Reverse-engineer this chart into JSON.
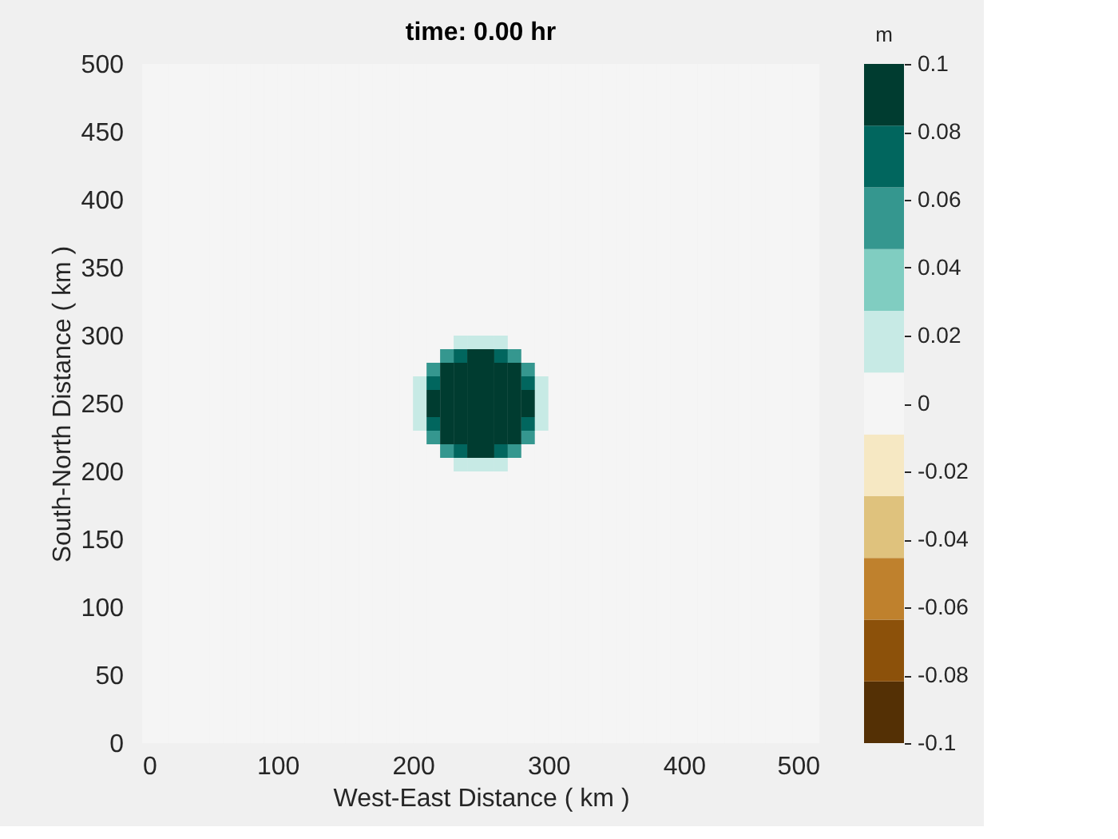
{
  "chart_data": {
    "type": "heatmap",
    "title": "time: 0.00 hr",
    "xlabel": "West-East Distance ( km )",
    "ylabel": "South-North Distance ( km )",
    "clabel": "m",
    "xlim": [
      0,
      500
    ],
    "ylim": [
      0,
      500
    ],
    "xticks": [
      0,
      100,
      200,
      300,
      400,
      500
    ],
    "yticks": [
      0,
      50,
      100,
      150,
      200,
      250,
      300,
      350,
      400,
      450,
      500
    ],
    "clim": [
      -0.1,
      0.1
    ],
    "cticks": [
      -0.1,
      -0.08,
      -0.06,
      -0.04,
      -0.02,
      0,
      0.02,
      0.04,
      0.06,
      0.08,
      0.1
    ],
    "colors": [
      "#543005",
      "#8c510a",
      "#bf812d",
      "#dfc27d",
      "#f6e8c3",
      "#f5f5f5",
      "#c7eae5",
      "#80cdc1",
      "#35978f",
      "#01665e",
      "#003c30"
    ],
    "grid": false,
    "cells": [
      [
        0,
        0,
        0,
        0,
        0,
        0,
        0,
        0,
        0,
        0,
        0,
        0,
        0,
        0,
        0,
        0,
        0,
        0,
        0,
        0,
        0,
        0,
        0,
        0,
        0,
        0,
        0,
        0,
        0,
        0,
        0,
        0,
        0,
        0,
        0,
        0,
        0,
        0,
        0,
        0,
        0,
        0,
        0,
        0,
        0,
        0,
        0,
        0,
        0,
        0
      ],
      [
        0,
        0,
        0,
        0,
        0,
        0,
        0,
        0,
        0,
        0,
        0,
        0,
        0,
        0,
        0,
        0,
        0,
        0,
        0,
        0,
        0,
        0,
        0,
        0,
        0,
        0,
        0,
        0,
        0,
        0,
        0,
        0,
        0,
        0,
        0,
        0,
        0,
        0,
        0,
        0,
        0,
        0,
        0,
        0,
        0,
        0,
        0,
        0,
        0,
        0
      ],
      [
        0,
        0,
        0,
        0,
        0,
        0,
        0,
        0,
        0,
        0,
        0,
        0,
        0,
        0,
        0,
        0,
        0,
        0,
        0,
        0,
        0,
        0,
        0,
        0,
        0,
        0,
        0,
        0,
        0,
        0,
        0,
        0,
        0,
        0,
        0,
        0,
        0,
        0,
        0,
        0,
        0,
        0,
        0,
        0,
        0,
        0,
        0,
        0,
        0,
        0
      ],
      [
        0,
        0,
        0,
        0,
        0,
        0,
        0,
        0,
        0,
        0,
        0,
        0,
        0,
        0,
        0,
        0,
        0,
        0,
        0,
        0,
        0,
        0,
        0,
        0,
        0,
        0,
        0,
        0,
        0,
        0,
        0,
        0,
        0,
        0,
        0,
        0,
        0,
        0,
        0,
        0,
        0,
        0,
        0,
        0,
        0,
        0,
        0,
        0,
        0,
        0
      ],
      [
        0,
        0,
        0,
        0,
        0,
        0,
        0,
        0,
        0,
        0,
        0,
        0,
        0,
        0,
        0,
        0,
        0,
        0,
        0,
        0,
        0,
        0,
        0,
        0,
        0,
        0,
        0,
        0,
        0,
        0,
        0,
        0,
        0,
        0,
        0,
        0,
        0,
        0,
        0,
        0,
        0,
        0,
        0,
        0,
        0,
        0,
        0,
        0,
        0,
        0
      ],
      [
        0,
        0,
        0,
        0,
        0,
        0,
        0,
        0,
        0,
        0,
        0,
        0,
        0,
        0,
        0,
        0,
        0,
        0,
        0,
        0,
        0,
        0,
        0,
        0,
        0,
        0,
        0,
        0,
        0,
        0,
        0,
        0,
        0,
        0,
        0,
        0,
        0,
        0,
        0,
        0,
        0,
        0,
        0,
        0,
        0,
        0,
        0,
        0,
        0,
        0
      ],
      [
        0,
        0,
        0,
        0,
        0,
        0,
        0,
        0,
        0,
        0,
        0,
        0,
        0,
        0,
        0,
        0,
        0,
        0,
        0,
        0,
        0,
        0,
        0,
        0,
        0,
        0,
        0,
        0,
        0,
        0,
        0,
        0,
        0,
        0,
        0,
        0,
        0,
        0,
        0,
        0,
        0,
        0,
        0,
        0,
        0,
        0,
        0,
        0,
        0,
        0
      ],
      [
        0,
        0,
        0,
        0,
        0,
        0,
        0,
        0,
        0,
        0,
        0,
        0,
        0,
        0,
        0,
        0,
        0,
        0,
        0,
        0,
        0,
        0,
        0,
        0,
        0,
        0,
        0,
        0,
        0,
        0,
        0,
        0,
        0,
        0,
        0,
        0,
        0,
        0,
        0,
        0,
        0,
        0,
        0,
        0,
        0,
        0,
        0,
        0,
        0,
        0
      ],
      [
        0,
        0,
        0,
        0,
        0,
        0,
        0,
        0,
        0,
        0,
        0,
        0,
        0,
        0,
        0,
        0,
        0,
        0,
        0,
        0,
        0,
        0,
        0,
        0,
        0,
        0,
        0,
        0,
        0,
        0,
        0,
        0,
        0,
        0,
        0,
        0,
        0,
        0,
        0,
        0,
        0,
        0,
        0,
        0,
        0,
        0,
        0,
        0,
        0,
        0
      ],
      [
        0,
        0,
        0,
        0,
        0,
        0,
        0,
        0,
        0,
        0,
        0,
        0,
        0,
        0,
        0,
        0,
        0,
        0,
        0,
        0,
        0,
        0,
        0,
        0,
        0,
        0,
        0,
        0,
        0,
        0,
        0,
        0,
        0,
        0,
        0,
        0,
        0,
        0,
        0,
        0,
        0,
        0,
        0,
        0,
        0,
        0,
        0,
        0,
        0,
        0
      ],
      [
        0,
        0,
        0,
        0,
        0,
        0,
        0,
        0,
        0,
        0,
        0,
        0,
        0,
        0,
        0,
        0,
        0,
        0,
        0,
        0,
        0,
        0,
        0,
        0,
        0,
        0,
        0,
        0,
        0,
        0,
        0,
        0,
        0,
        0,
        0,
        0,
        0,
        0,
        0,
        0,
        0,
        0,
        0,
        0,
        0,
        0,
        0,
        0,
        0,
        0
      ],
      [
        0,
        0,
        0,
        0,
        0,
        0,
        0,
        0,
        0,
        0,
        0,
        0,
        0,
        0,
        0,
        0,
        0,
        0,
        0,
        0,
        0,
        0,
        0,
        0,
        0,
        0,
        0,
        0,
        0,
        0,
        0,
        0,
        0,
        0,
        0,
        0,
        0,
        0,
        0,
        0,
        0,
        0,
        0,
        0,
        0,
        0,
        0,
        0,
        0,
        0
      ],
      [
        0,
        0,
        0,
        0,
        0,
        0,
        0,
        0,
        0,
        0,
        0,
        0,
        0,
        0,
        0,
        0,
        0,
        0,
        0,
        0,
        0,
        0,
        0,
        0,
        0,
        0,
        0,
        0,
        0,
        0,
        0,
        0,
        0,
        0,
        0,
        0,
        0,
        0,
        0,
        0,
        0,
        0,
        0,
        0,
        0,
        0,
        0,
        0,
        0,
        0
      ],
      [
        0,
        0,
        0,
        0,
        0,
        0,
        0,
        0,
        0,
        0,
        0,
        0,
        0,
        0,
        0,
        0,
        0,
        0,
        0,
        0,
        0,
        0,
        0,
        0,
        0,
        0,
        0,
        0,
        0,
        0,
        0,
        0,
        0,
        0,
        0,
        0,
        0,
        0,
        0,
        0,
        0,
        0,
        0,
        0,
        0,
        0,
        0,
        0,
        0,
        0
      ],
      [
        0,
        0,
        0,
        0,
        0,
        0,
        0,
        0,
        0,
        0,
        0,
        0,
        0,
        0,
        0,
        0,
        0,
        0,
        0,
        0,
        0,
        0,
        0,
        0,
        0,
        0,
        0,
        0,
        0,
        0,
        0,
        0,
        0,
        0,
        0,
        0,
        0,
        0,
        0,
        0,
        0,
        0,
        0,
        0,
        0,
        0,
        0,
        0,
        0,
        0
      ],
      [
        0,
        0,
        0,
        0,
        0,
        0,
        0,
        0,
        0,
        0,
        0,
        0,
        0,
        0,
        0,
        0,
        0,
        0,
        0,
        0,
        0,
        0,
        0,
        0,
        0,
        0,
        0,
        0,
        0,
        0,
        0,
        0,
        0,
        0,
        0,
        0,
        0,
        0,
        0,
        0,
        0,
        0,
        0,
        0,
        0,
        0,
        0,
        0,
        0,
        0
      ],
      [
        0,
        0,
        0,
        0,
        0,
        0,
        0,
        0,
        0,
        0,
        0,
        0,
        0,
        0,
        0,
        0,
        0,
        0,
        0,
        0,
        0,
        0,
        0,
        0,
        0,
        0,
        0,
        0,
        0,
        0,
        0,
        0,
        0,
        0,
        0,
        0,
        0,
        0,
        0,
        0,
        0,
        0,
        0,
        0,
        0,
        0,
        0,
        0,
        0,
        0
      ],
      [
        0,
        0,
        0,
        0,
        0,
        0,
        0,
        0,
        0,
        0,
        0,
        0,
        0,
        0,
        0,
        0,
        0,
        0,
        0,
        0,
        0,
        0,
        0,
        0,
        0,
        0,
        0,
        0,
        0,
        0,
        0,
        0,
        0,
        0,
        0,
        0,
        0,
        0,
        0,
        0,
        0,
        0,
        0,
        0,
        0,
        0,
        0,
        0,
        0,
        0
      ],
      [
        0,
        0,
        0,
        0,
        0,
        0,
        0,
        0,
        0,
        0,
        0,
        0,
        0,
        0,
        0,
        0,
        0,
        0,
        0,
        0,
        0,
        0,
        0,
        0,
        0,
        0,
        0,
        0,
        0,
        0,
        0,
        0,
        0,
        0,
        0,
        0,
        0,
        0,
        0,
        0,
        0,
        0,
        0,
        0,
        0,
        0,
        0,
        0,
        0,
        0
      ],
      [
        0,
        0,
        0,
        0,
        0,
        0,
        0,
        0,
        0,
        0,
        0,
        0,
        0,
        0,
        0,
        0,
        0,
        0,
        0,
        0,
        0,
        0,
        0,
        0,
        0,
        0,
        0,
        0,
        0,
        0,
        0,
        0,
        0,
        0,
        0,
        0,
        0,
        0,
        0,
        0,
        0,
        0,
        0,
        0,
        0,
        0,
        0,
        0,
        0,
        0
      ],
      [
        0,
        0,
        0,
        0,
        0,
        0,
        0,
        0,
        0,
        0,
        0,
        0,
        0,
        0,
        0,
        0,
        0,
        0,
        0,
        0,
        0,
        0,
        0,
        0.02,
        0.02,
        0.02,
        0.02,
        0,
        0,
        0,
        0,
        0,
        0,
        0,
        0,
        0,
        0,
        0,
        0,
        0,
        0,
        0,
        0,
        0,
        0,
        0,
        0,
        0,
        0,
        0
      ],
      [
        0,
        0,
        0,
        0,
        0,
        0,
        0,
        0,
        0,
        0,
        0,
        0,
        0,
        0,
        0,
        0,
        0,
        0,
        0,
        0,
        0,
        0,
        0.05,
        0.07,
        0.1,
        0.1,
        0.07,
        0.05,
        0,
        0,
        0,
        0,
        0,
        0,
        0,
        0,
        0,
        0,
        0,
        0,
        0,
        0,
        0,
        0,
        0,
        0,
        0,
        0,
        0,
        0
      ],
      [
        0,
        0,
        0,
        0,
        0,
        0,
        0,
        0,
        0,
        0,
        0,
        0,
        0,
        0,
        0,
        0,
        0,
        0,
        0,
        0,
        0,
        0.05,
        0.1,
        0.1,
        0.1,
        0.1,
        0.1,
        0.1,
        0.05,
        0,
        0,
        0,
        0,
        0,
        0,
        0,
        0,
        0,
        0,
        0,
        0,
        0,
        0,
        0,
        0,
        0,
        0,
        0,
        0,
        0
      ],
      [
        0,
        0,
        0,
        0,
        0,
        0,
        0,
        0,
        0,
        0,
        0,
        0,
        0,
        0,
        0,
        0,
        0,
        0,
        0,
        0,
        0.02,
        0.07,
        0.1,
        0.1,
        0.1,
        0.1,
        0.1,
        0.1,
        0.07,
        0.02,
        0,
        0,
        0,
        0,
        0,
        0,
        0,
        0,
        0,
        0,
        0,
        0,
        0,
        0,
        0,
        0,
        0,
        0,
        0,
        0
      ],
      [
        0,
        0,
        0,
        0,
        0,
        0,
        0,
        0,
        0,
        0,
        0,
        0,
        0,
        0,
        0,
        0,
        0,
        0,
        0,
        0,
        0.02,
        0.1,
        0.1,
        0.1,
        0.1,
        0.1,
        0.1,
        0.1,
        0.1,
        0.02,
        0,
        0,
        0,
        0,
        0,
        0,
        0,
        0,
        0,
        0,
        0,
        0,
        0,
        0,
        0,
        0,
        0,
        0,
        0,
        0
      ],
      [
        0,
        0,
        0,
        0,
        0,
        0,
        0,
        0,
        0,
        0,
        0,
        0,
        0,
        0,
        0,
        0,
        0,
        0,
        0,
        0,
        0.02,
        0.1,
        0.1,
        0.1,
        0.1,
        0.1,
        0.1,
        0.1,
        0.1,
        0.02,
        0,
        0,
        0,
        0,
        0,
        0,
        0,
        0,
        0,
        0,
        0,
        0,
        0,
        0,
        0,
        0,
        0,
        0,
        0,
        0
      ],
      [
        0,
        0,
        0,
        0,
        0,
        0,
        0,
        0,
        0,
        0,
        0,
        0,
        0,
        0,
        0,
        0,
        0,
        0,
        0,
        0,
        0.02,
        0.07,
        0.1,
        0.1,
        0.1,
        0.1,
        0.1,
        0.1,
        0.07,
        0.02,
        0,
        0,
        0,
        0,
        0,
        0,
        0,
        0,
        0,
        0,
        0,
        0,
        0,
        0,
        0,
        0,
        0,
        0,
        0,
        0
      ],
      [
        0,
        0,
        0,
        0,
        0,
        0,
        0,
        0,
        0,
        0,
        0,
        0,
        0,
        0,
        0,
        0,
        0,
        0,
        0,
        0,
        0,
        0.05,
        0.1,
        0.1,
        0.1,
        0.1,
        0.1,
        0.1,
        0.05,
        0,
        0,
        0,
        0,
        0,
        0,
        0,
        0,
        0,
        0,
        0,
        0,
        0,
        0,
        0,
        0,
        0,
        0,
        0,
        0,
        0
      ],
      [
        0,
        0,
        0,
        0,
        0,
        0,
        0,
        0,
        0,
        0,
        0,
        0,
        0,
        0,
        0,
        0,
        0,
        0,
        0,
        0,
        0,
        0,
        0.05,
        0.07,
        0.1,
        0.1,
        0.07,
        0.05,
        0,
        0,
        0,
        0,
        0,
        0,
        0,
        0,
        0,
        0,
        0,
        0,
        0,
        0,
        0,
        0,
        0,
        0,
        0,
        0,
        0,
        0
      ],
      [
        0,
        0,
        0,
        0,
        0,
        0,
        0,
        0,
        0,
        0,
        0,
        0,
        0,
        0,
        0,
        0,
        0,
        0,
        0,
        0,
        0,
        0,
        0,
        0.02,
        0.02,
        0.02,
        0.02,
        0,
        0,
        0,
        0,
        0,
        0,
        0,
        0,
        0,
        0,
        0,
        0,
        0,
        0,
        0,
        0,
        0,
        0,
        0,
        0,
        0,
        0,
        0
      ],
      [
        0,
        0,
        0,
        0,
        0,
        0,
        0,
        0,
        0,
        0,
        0,
        0,
        0,
        0,
        0,
        0,
        0,
        0,
        0,
        0,
        0,
        0,
        0,
        0,
        0,
        0,
        0,
        0,
        0,
        0,
        0,
        0,
        0,
        0,
        0,
        0,
        0,
        0,
        0,
        0,
        0,
        0,
        0,
        0,
        0,
        0,
        0,
        0,
        0,
        0
      ],
      [
        0,
        0,
        0,
        0,
        0,
        0,
        0,
        0,
        0,
        0,
        0,
        0,
        0,
        0,
        0,
        0,
        0,
        0,
        0,
        0,
        0,
        0,
        0,
        0,
        0,
        0,
        0,
        0,
        0,
        0,
        0,
        0,
        0,
        0,
        0,
        0,
        0,
        0,
        0,
        0,
        0,
        0,
        0,
        0,
        0,
        0,
        0,
        0,
        0,
        0
      ],
      [
        0,
        0,
        0,
        0,
        0,
        0,
        0,
        0,
        0,
        0,
        0,
        0,
        0,
        0,
        0,
        0,
        0,
        0,
        0,
        0,
        0,
        0,
        0,
        0,
        0,
        0,
        0,
        0,
        0,
        0,
        0,
        0,
        0,
        0,
        0,
        0,
        0,
        0,
        0,
        0,
        0,
        0,
        0,
        0,
        0,
        0,
        0,
        0,
        0,
        0
      ],
      [
        0,
        0,
        0,
        0,
        0,
        0,
        0,
        0,
        0,
        0,
        0,
        0,
        0,
        0,
        0,
        0,
        0,
        0,
        0,
        0,
        0,
        0,
        0,
        0,
        0,
        0,
        0,
        0,
        0,
        0,
        0,
        0,
        0,
        0,
        0,
        0,
        0,
        0,
        0,
        0,
        0,
        0,
        0,
        0,
        0,
        0,
        0,
        0,
        0,
        0
      ],
      [
        0,
        0,
        0,
        0,
        0,
        0,
        0,
        0,
        0,
        0,
        0,
        0,
        0,
        0,
        0,
        0,
        0,
        0,
        0,
        0,
        0,
        0,
        0,
        0,
        0,
        0,
        0,
        0,
        0,
        0,
        0,
        0,
        0,
        0,
        0,
        0,
        0,
        0,
        0,
        0,
        0,
        0,
        0,
        0,
        0,
        0,
        0,
        0,
        0,
        0
      ],
      [
        0,
        0,
        0,
        0,
        0,
        0,
        0,
        0,
        0,
        0,
        0,
        0,
        0,
        0,
        0,
        0,
        0,
        0,
        0,
        0,
        0,
        0,
        0,
        0,
        0,
        0,
        0,
        0,
        0,
        0,
        0,
        0,
        0,
        0,
        0,
        0,
        0,
        0,
        0,
        0,
        0,
        0,
        0,
        0,
        0,
        0,
        0,
        0,
        0,
        0
      ],
      [
        0,
        0,
        0,
        0,
        0,
        0,
        0,
        0,
        0,
        0,
        0,
        0,
        0,
        0,
        0,
        0,
        0,
        0,
        0,
        0,
        0,
        0,
        0,
        0,
        0,
        0,
        0,
        0,
        0,
        0,
        0,
        0,
        0,
        0,
        0,
        0,
        0,
        0,
        0,
        0,
        0,
        0,
        0,
        0,
        0,
        0,
        0,
        0,
        0,
        0
      ],
      [
        0,
        0,
        0,
        0,
        0,
        0,
        0,
        0,
        0,
        0,
        0,
        0,
        0,
        0,
        0,
        0,
        0,
        0,
        0,
        0,
        0,
        0,
        0,
        0,
        0,
        0,
        0,
        0,
        0,
        0,
        0,
        0,
        0,
        0,
        0,
        0,
        0,
        0,
        0,
        0,
        0,
        0,
        0,
        0,
        0,
        0,
        0,
        0,
        0,
        0
      ],
      [
        0,
        0,
        0,
        0,
        0,
        0,
        0,
        0,
        0,
        0,
        0,
        0,
        0,
        0,
        0,
        0,
        0,
        0,
        0,
        0,
        0,
        0,
        0,
        0,
        0,
        0,
        0,
        0,
        0,
        0,
        0,
        0,
        0,
        0,
        0,
        0,
        0,
        0,
        0,
        0,
        0,
        0,
        0,
        0,
        0,
        0,
        0,
        0,
        0,
        0
      ],
      [
        0,
        0,
        0,
        0,
        0,
        0,
        0,
        0,
        0,
        0,
        0,
        0,
        0,
        0,
        0,
        0,
        0,
        0,
        0,
        0,
        0,
        0,
        0,
        0,
        0,
        0,
        0,
        0,
        0,
        0,
        0,
        0,
        0,
        0,
        0,
        0,
        0,
        0,
        0,
        0,
        0,
        0,
        0,
        0,
        0,
        0,
        0,
        0,
        0,
        0
      ],
      [
        0,
        0,
        0,
        0,
        0,
        0,
        0,
        0,
        0,
        0,
        0,
        0,
        0,
        0,
        0,
        0,
        0,
        0,
        0,
        0,
        0,
        0,
        0,
        0,
        0,
        0,
        0,
        0,
        0,
        0,
        0,
        0,
        0,
        0,
        0,
        0,
        0,
        0,
        0,
        0,
        0,
        0,
        0,
        0,
        0,
        0,
        0,
        0,
        0,
        0
      ],
      [
        0,
        0,
        0,
        0,
        0,
        0,
        0,
        0,
        0,
        0,
        0,
        0,
        0,
        0,
        0,
        0,
        0,
        0,
        0,
        0,
        0,
        0,
        0,
        0,
        0,
        0,
        0,
        0,
        0,
        0,
        0,
        0,
        0,
        0,
        0,
        0,
        0,
        0,
        0,
        0,
        0,
        0,
        0,
        0,
        0,
        0,
        0,
        0,
        0,
        0
      ],
      [
        0,
        0,
        0,
        0,
        0,
        0,
        0,
        0,
        0,
        0,
        0,
        0,
        0,
        0,
        0,
        0,
        0,
        0,
        0,
        0,
        0,
        0,
        0,
        0,
        0,
        0,
        0,
        0,
        0,
        0,
        0,
        0,
        0,
        0,
        0,
        0,
        0,
        0,
        0,
        0,
        0,
        0,
        0,
        0,
        0,
        0,
        0,
        0,
        0,
        0
      ],
      [
        0,
        0,
        0,
        0,
        0,
        0,
        0,
        0,
        0,
        0,
        0,
        0,
        0,
        0,
        0,
        0,
        0,
        0,
        0,
        0,
        0,
        0,
        0,
        0,
        0,
        0,
        0,
        0,
        0,
        0,
        0,
        0,
        0,
        0,
        0,
        0,
        0,
        0,
        0,
        0,
        0,
        0,
        0,
        0,
        0,
        0,
        0,
        0,
        0,
        0
      ],
      [
        0,
        0,
        0,
        0,
        0,
        0,
        0,
        0,
        0,
        0,
        0,
        0,
        0,
        0,
        0,
        0,
        0,
        0,
        0,
        0,
        0,
        0,
        0,
        0,
        0,
        0,
        0,
        0,
        0,
        0,
        0,
        0,
        0,
        0,
        0,
        0,
        0,
        0,
        0,
        0,
        0,
        0,
        0,
        0,
        0,
        0,
        0,
        0,
        0,
        0
      ],
      [
        0,
        0,
        0,
        0,
        0,
        0,
        0,
        0,
        0,
        0,
        0,
        0,
        0,
        0,
        0,
        0,
        0,
        0,
        0,
        0,
        0,
        0,
        0,
        0,
        0,
        0,
        0,
        0,
        0,
        0,
        0,
        0,
        0,
        0,
        0,
        0,
        0,
        0,
        0,
        0,
        0,
        0,
        0,
        0,
        0,
        0,
        0,
        0,
        0,
        0
      ],
      [
        0,
        0,
        0,
        0,
        0,
        0,
        0,
        0,
        0,
        0,
        0,
        0,
        0,
        0,
        0,
        0,
        0,
        0,
        0,
        0,
        0,
        0,
        0,
        0,
        0,
        0,
        0,
        0,
        0,
        0,
        0,
        0,
        0,
        0,
        0,
        0,
        0,
        0,
        0,
        0,
        0,
        0,
        0,
        0,
        0,
        0,
        0,
        0,
        0,
        0
      ],
      [
        0,
        0,
        0,
        0,
        0,
        0,
        0,
        0,
        0,
        0,
        0,
        0,
        0,
        0,
        0,
        0,
        0,
        0,
        0,
        0,
        0,
        0,
        0,
        0,
        0,
        0,
        0,
        0,
        0,
        0,
        0,
        0,
        0,
        0,
        0,
        0,
        0,
        0,
        0,
        0,
        0,
        0,
        0,
        0,
        0,
        0,
        0,
        0,
        0,
        0
      ],
      [
        0,
        0,
        0,
        0,
        0,
        0,
        0,
        0,
        0,
        0,
        0,
        0,
        0,
        0,
        0,
        0,
        0,
        0,
        0,
        0,
        0,
        0,
        0,
        0,
        0,
        0,
        0,
        0,
        0,
        0,
        0,
        0,
        0,
        0,
        0,
        0,
        0,
        0,
        0,
        0,
        0,
        0,
        0,
        0,
        0,
        0,
        0,
        0,
        0,
        0
      ],
      [
        0,
        0,
        0,
        0,
        0,
        0,
        0,
        0,
        0,
        0,
        0,
        0,
        0,
        0,
        0,
        0,
        0,
        0,
        0,
        0,
        0,
        0,
        0,
        0,
        0,
        0,
        0,
        0,
        0,
        0,
        0,
        0,
        0,
        0,
        0,
        0,
        0,
        0,
        0,
        0,
        0,
        0,
        0,
        0,
        0,
        0,
        0,
        0,
        0,
        0
      ]
    ]
  }
}
